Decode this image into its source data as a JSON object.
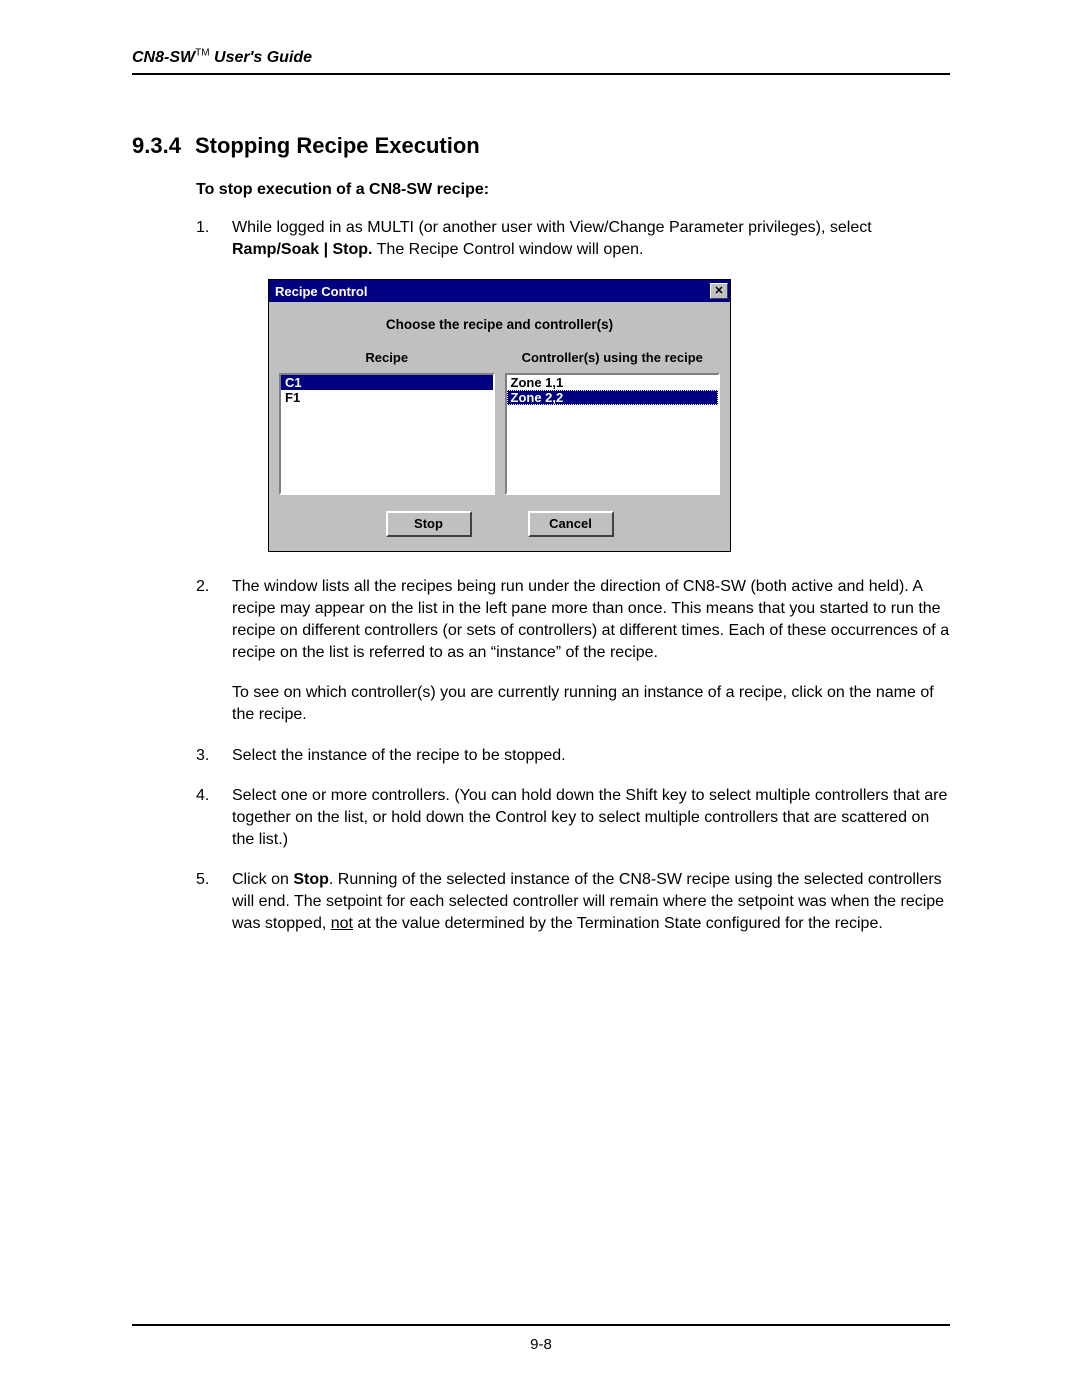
{
  "header": {
    "product": "CN8-SW",
    "suffix": " User's Guide",
    "tm": "TM"
  },
  "section": {
    "number": "9.3.4",
    "title": "Stopping Recipe Execution"
  },
  "subhead": "To stop execution of a CN8-SW recipe:",
  "steps": {
    "s1": {
      "text_a": "While logged in as MULTI (or another user with View/Change Parameter privileges), select ",
      "bold": "Ramp/Soak | Stop.",
      "text_b": "  The Recipe Control window will open."
    },
    "s2": {
      "p1": "The window lists all the recipes being run under the direction of CN8-SW (both active and held).  A recipe may appear on the list in the left pane more than once.  This means that you started to run the recipe on different controllers (or sets of controllers) at different times.  Each of these occurrences of a recipe on the list is referred to as an “instance” of the recipe.",
      "p2": "To see on which controller(s) you are currently running an instance of a recipe, click on the name of the recipe."
    },
    "s3": "Select the instance of the recipe to be stopped.",
    "s4": "Select one or more controllers.  (You can hold down the Shift key to select multiple controllers that are together on the list, or hold down the Control key to select multiple controllers that are scattered on the list.)",
    "s5": {
      "a": "Click on ",
      "bold": "Stop",
      "b": ".  Running of the selected instance of the CN8-SW recipe using the selected controllers will end.  The setpoint for each selected controller will remain where the setpoint was when the recipe was stopped, ",
      "underline": "not",
      "c": " at the value determined by the Termination State configured for the recipe."
    }
  },
  "dialog": {
    "title": "Recipe Control",
    "heading": "Choose the recipe and controller(s)",
    "col_recipe": "Recipe",
    "col_controllers": "Controller(s) using the recipe",
    "recipes": {
      "i0": "C1",
      "i1": "F1"
    },
    "controllers": {
      "i0": "Zone 1,1",
      "i1": "Zone 2,2"
    },
    "btn_stop": "Stop",
    "btn_cancel": "Cancel",
    "colors": {
      "titlebar_bg": "#000080",
      "titlebar_fg": "#ffffff",
      "panel_bg": "#c0c0c0",
      "selection_bg": "#000080",
      "selection_fg": "#ffffff",
      "listbox_bg": "#ffffff"
    }
  },
  "footer": {
    "page": "9-8"
  }
}
